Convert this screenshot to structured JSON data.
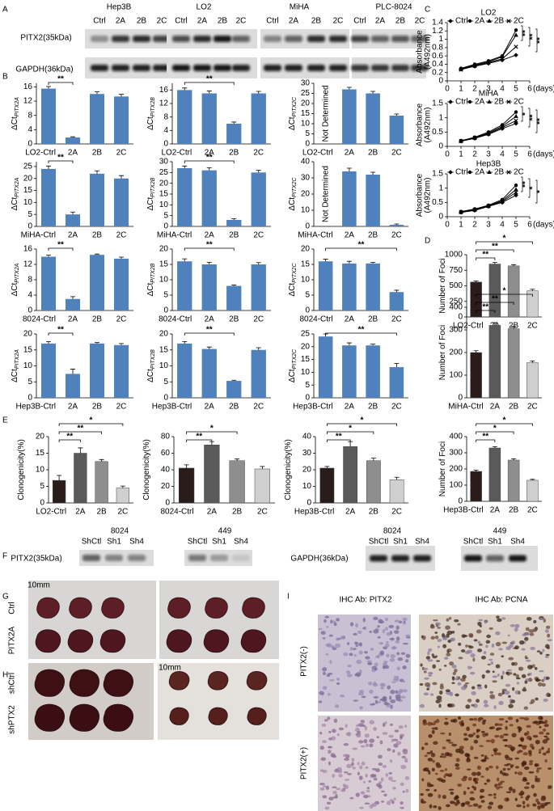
{
  "panel_labels": [
    "A",
    "B",
    "C",
    "D",
    "E",
    "F",
    "G",
    "H",
    "I"
  ],
  "panel_a": {
    "cell_lines": [
      "Hep3B",
      "LO2",
      "MiHA",
      "PLC-8024"
    ],
    "lanes": [
      "Ctrl",
      "2A",
      "2B",
      "2C"
    ],
    "proteins": [
      "PITX2(35kDa)",
      "GAPDH(36kDa)"
    ]
  },
  "panel_f": {
    "groups": [
      "8024",
      "449"
    ],
    "lanes": [
      "ShCtl",
      "Sh1",
      "Sh4"
    ],
    "proteins": [
      "PITX2(35kDa)",
      "GAPDH(36kDa)"
    ]
  },
  "panel_g": {
    "rows": [
      "Ctrl",
      "PITX2A"
    ],
    "scale": "10mm"
  },
  "panel_h": {
    "rows": [
      "shCtrl",
      "shPTX2"
    ],
    "scale": "10mm"
  },
  "panel_i": {
    "columns": [
      "IHC Ab: PITX2",
      "IHC Ab: PCNA"
    ],
    "rows": [
      "PITX2(-)",
      "PITX2(+)"
    ]
  },
  "chart_data": [
    {
      "type": "bar",
      "ylabel": "ΔCt",
      "ylabel_subscript": "PITX2A",
      "categories": [
        "LO2-Ctrl",
        "2A",
        "2B",
        "2C"
      ],
      "values": [
        15.5,
        1.8,
        14,
        13.3
      ],
      "errors": [
        0.6,
        0.2,
        0.6,
        0.6
      ],
      "color": "#4f81bd",
      "ylim": [
        0,
        17
      ],
      "yticks": [
        0,
        4,
        8,
        12,
        16
      ],
      "significance": [
        {
          "label": "**",
          "between": [
            "LO2-Ctrl",
            "2A"
          ]
        }
      ]
    },
    {
      "type": "bar",
      "ylabel": "ΔCt",
      "ylabel_subscript": "PITX2B",
      "categories": [
        "LO2-Ctrl",
        "2A",
        "2B",
        "2C"
      ],
      "values": [
        16,
        15,
        6,
        15
      ],
      "errors": [
        0.6,
        0.7,
        0.5,
        0.6
      ],
      "color": "#4f81bd",
      "ylim": [
        0,
        18
      ],
      "yticks": [
        0,
        4,
        8,
        12,
        16
      ],
      "significance": [
        {
          "label": "**",
          "between": [
            "LO2-Ctrl",
            "2B"
          ]
        }
      ]
    },
    {
      "type": "bar",
      "ylabel": "ΔCt",
      "ylabel_subscript": "PITX2C",
      "categories": [
        "LO2-Ctrl",
        "2A",
        "2B",
        "2C"
      ],
      "values": [
        null,
        27,
        25,
        14
      ],
      "errors": [
        null,
        1,
        1,
        0.8
      ],
      "color": "#4f81bd",
      "ylim": [
        0,
        30
      ],
      "yticks": [
        0,
        5,
        10,
        15,
        20,
        25,
        30
      ],
      "note": "Not Determined"
    },
    {
      "type": "bar",
      "ylabel": "ΔCt",
      "ylabel_subscript": "PITX2A",
      "categories": [
        "MiHA-Ctrl",
        "2A",
        "2B",
        "2C"
      ],
      "values": [
        24,
        5,
        22,
        20
      ],
      "errors": [
        1.2,
        1,
        1.2,
        1.2
      ],
      "color": "#4f81bd",
      "ylim": [
        0,
        27
      ],
      "yticks": [
        0,
        5,
        10,
        15,
        20,
        25
      ],
      "significance": [
        {
          "label": "**",
          "between": [
            "MiHA-Ctrl",
            "2A"
          ]
        }
      ]
    },
    {
      "type": "bar",
      "ylabel": "ΔCt",
      "ylabel_subscript": "PITX2B",
      "categories": [
        "MiHA-Ctrl",
        "2A",
        "2B",
        "2C"
      ],
      "values": [
        27,
        26,
        3,
        25
      ],
      "errors": [
        1,
        1.2,
        0.6,
        1
      ],
      "color": "#4f81bd",
      "ylim": [
        0,
        30
      ],
      "yticks": [
        0,
        5,
        10,
        15,
        20,
        25,
        30
      ],
      "significance": [
        {
          "label": "**",
          "between": [
            "MiHA-Ctrl",
            "2B"
          ]
        }
      ]
    },
    {
      "type": "bar",
      "ylabel": "ΔCt",
      "ylabel_subscript": "PITX2C",
      "categories": [
        "MiHA-Ctrl",
        "2A",
        "2B",
        "2C"
      ],
      "values": [
        null,
        34,
        32,
        1
      ],
      "errors": [
        null,
        2,
        1.5,
        0.5
      ],
      "color": "#4f81bd",
      "ylim": [
        0,
        40
      ],
      "yticks": [
        0,
        10,
        20,
        30,
        40
      ],
      "note": "Not Determined"
    },
    {
      "type": "bar",
      "ylabel": "ΔCt",
      "ylabel_subscript": "PITX2A",
      "categories": [
        "8024-Ctrl",
        "2A",
        "2B",
        "2C"
      ],
      "values": [
        14,
        3,
        14.5,
        13.5
      ],
      "errors": [
        0.4,
        0.6,
        0.2,
        0.4
      ],
      "color": "#4f81bd",
      "ylim": [
        0,
        16
      ],
      "yticks": [
        0,
        4,
        8,
        12,
        16
      ],
      "significance": [
        {
          "label": "**",
          "between": [
            "8024-Ctrl",
            "2A"
          ]
        }
      ]
    },
    {
      "type": "bar",
      "ylabel": "ΔCt",
      "ylabel_subscript": "PITX2B",
      "categories": [
        "8024-Ctrl",
        "2A",
        "2B",
        "2C"
      ],
      "values": [
        16,
        15,
        8,
        15
      ],
      "errors": [
        0.8,
        0.7,
        0.3,
        0.6
      ],
      "color": "#4f81bd",
      "ylim": [
        0,
        20
      ],
      "yticks": [
        0,
        5,
        10,
        15,
        20
      ],
      "significance": [
        {
          "label": "**",
          "between": [
            "8024-Ctrl",
            "2B"
          ]
        }
      ]
    },
    {
      "type": "bar",
      "ylabel": "ΔCt",
      "ylabel_subscript": "PITX2C",
      "categories": [
        "8024-Ctrl",
        "2A",
        "2B",
        "2C"
      ],
      "values": [
        16,
        15.3,
        15.3,
        6
      ],
      "errors": [
        0.7,
        0.7,
        0.4,
        0.6
      ],
      "color": "#4f81bd",
      "ylim": [
        0,
        20
      ],
      "yticks": [
        0,
        5,
        10,
        15,
        20
      ],
      "significance": [
        {
          "label": "**",
          "between": [
            "8024-Ctrl",
            "2C"
          ]
        }
      ]
    },
    {
      "type": "bar",
      "ylabel": "ΔCt",
      "ylabel_subscript": "PITX2A",
      "categories": [
        "Hep3B-Ctrl",
        "2A",
        "2B",
        "2C"
      ],
      "values": [
        17,
        7.5,
        17,
        16.5
      ],
      "errors": [
        0.6,
        1.5,
        0.3,
        0.5
      ],
      "color": "#4f81bd",
      "ylim": [
        0,
        20
      ],
      "yticks": [
        0,
        5,
        10,
        15,
        20
      ],
      "significance": [
        {
          "label": "**",
          "between": [
            "Hep3B-Ctrl",
            "2A"
          ]
        }
      ]
    },
    {
      "type": "bar",
      "ylabel": "ΔCt",
      "ylabel_subscript": "PITX2B",
      "categories": [
        "Hep3B-Ctrl",
        "2A",
        "2B",
        "2C"
      ],
      "values": [
        17,
        15.3,
        5.3,
        15
      ],
      "errors": [
        0.6,
        0.6,
        0.2,
        0.7
      ],
      "color": "#4f81bd",
      "ylim": [
        0,
        20
      ],
      "yticks": [
        0,
        5,
        10,
        15,
        20
      ],
      "significance": [
        {
          "label": "**",
          "between": [
            "Hep3B-Ctrl",
            "2B"
          ]
        }
      ]
    },
    {
      "type": "bar",
      "ylabel": "ΔCt",
      "ylabel_subscript": "PITX2C",
      "categories": [
        "Hep3B-Ctrl",
        "2A",
        "2B",
        "2C"
      ],
      "values": [
        24,
        20.5,
        20.5,
        12
      ],
      "errors": [
        1,
        1,
        0.5,
        1.5
      ],
      "color": "#4f81bd",
      "ylim": [
        0,
        25
      ],
      "yticks": [
        0,
        5,
        10,
        15,
        20,
        25
      ],
      "significance": [
        {
          "label": "**",
          "between": [
            "Hep3B-Ctrl",
            "2C"
          ]
        }
      ]
    },
    {
      "type": "bar",
      "ylabel": "Number of Foci",
      "categories": [
        "LO2-Ctrl",
        "2A",
        "2B",
        "2C"
      ],
      "values": [
        560,
        850,
        820,
        420
      ],
      "errors": [
        20,
        25,
        20,
        25
      ],
      "colors": [
        "#2a1c1a",
        "#5a5a5a",
        "#8e8e8e",
        "#cfcfcf"
      ],
      "ylim": [
        0,
        1000
      ],
      "yticks": [
        0,
        250,
        500,
        750,
        1000
      ],
      "significance": [
        {
          "label": "**",
          "between": [
            "LO2-Ctrl",
            "2A"
          ]
        },
        {
          "label": "**",
          "between": [
            "LO2-Ctrl",
            "2B"
          ]
        },
        {
          "label": "*",
          "between": [
            "LO2-Ctrl",
            "2C"
          ]
        }
      ]
    },
    {
      "type": "bar",
      "ylabel": "Number of Foci",
      "categories": [
        "MiHA-Ctrl",
        "2A",
        "2B",
        "2C"
      ],
      "values": [
        200,
        320,
        305,
        155
      ],
      "errors": [
        8,
        12,
        10,
        8
      ],
      "colors": [
        "#2a1c1a",
        "#5a5a5a",
        "#8e8e8e",
        "#cfcfcf"
      ],
      "ylim": [
        0,
        400
      ],
      "yticks": [
        0,
        100,
        200,
        300,
        400
      ],
      "significance": [
        {
          "label": "**",
          "between": [
            "MiHA-Ctrl",
            "2A"
          ]
        },
        {
          "label": "**",
          "between": [
            "MiHA-Ctrl",
            "2B"
          ]
        },
        {
          "label": "*",
          "between": [
            "MiHA-Ctrl",
            "2C"
          ]
        }
      ]
    },
    {
      "type": "bar",
      "ylabel": "Number of Foci",
      "categories": [
        "Hep3B-Ctrl",
        "2A",
        "2B",
        "2C"
      ],
      "values": [
        185,
        330,
        255,
        130
      ],
      "errors": [
        8,
        8,
        8,
        6
      ],
      "colors": [
        "#2a1c1a",
        "#5a5a5a",
        "#8e8e8e",
        "#cfcfcf"
      ],
      "ylim": [
        0,
        400
      ],
      "yticks": [
        0,
        100,
        200,
        300,
        400
      ],
      "significance": [
        {
          "label": "**",
          "between": [
            "Hep3B-Ctrl",
            "2A"
          ]
        },
        {
          "label": "*",
          "between": [
            "Hep3B-Ctrl",
            "2B"
          ]
        },
        {
          "label": "*",
          "between": [
            "Hep3B-Ctrl",
            "2C"
          ]
        }
      ]
    },
    {
      "type": "bar",
      "ylabel": "Clonogenicity(%)",
      "categories": [
        "LO2-Ctrl",
        "2A",
        "2B",
        "2C"
      ],
      "values": [
        6.8,
        15,
        12.5,
        4.5
      ],
      "errors": [
        1.5,
        1.6,
        0.6,
        0.6
      ],
      "colors": [
        "#2a1c1a",
        "#5a5a5a",
        "#8e8e8e",
        "#cfcfcf"
      ],
      "ylim": [
        0,
        20
      ],
      "yticks": [
        0,
        5,
        10,
        15,
        20
      ],
      "significance": [
        {
          "label": "**",
          "between": [
            "LO2-Ctrl",
            "2A"
          ]
        },
        {
          "label": "**",
          "between": [
            "LO2-Ctrl",
            "2B"
          ]
        },
        {
          "label": "*",
          "between": [
            "LO2-Ctrl",
            "2C"
          ]
        }
      ]
    },
    {
      "type": "bar",
      "ylabel": "Clonogenicity(%)",
      "categories": [
        "8024-Ctrl",
        "2A",
        "2B",
        "2C"
      ],
      "values": [
        42,
        70,
        51,
        41
      ],
      "errors": [
        4,
        4,
        2,
        3
      ],
      "colors": [
        "#2a1c1a",
        "#5a5a5a",
        "#8e8e8e",
        "#cfcfcf"
      ],
      "ylim": [
        0,
        80
      ],
      "yticks": [
        0,
        20,
        40,
        60,
        80
      ],
      "significance": [
        {
          "label": "**",
          "between": [
            "8024-Ctrl",
            "2A"
          ]
        },
        {
          "label": "*",
          "between": [
            "8024-Ctrl",
            "2B"
          ]
        }
      ]
    },
    {
      "type": "bar",
      "ylabel": "Clonogenicity(%)",
      "categories": [
        "Hep3B-Ctrl",
        "2A",
        "2B",
        "2C"
      ],
      "values": [
        21,
        34,
        25.5,
        14
      ],
      "errors": [
        1,
        3,
        1.5,
        1.5
      ],
      "colors": [
        "#2a1c1a",
        "#5a5a5a",
        "#8e8e8e",
        "#cfcfcf"
      ],
      "ylim": [
        0,
        40
      ],
      "yticks": [
        0,
        10,
        20,
        30,
        40
      ],
      "significance": [
        {
          "label": "**",
          "between": [
            "Hep3B-Ctrl",
            "2A"
          ]
        },
        {
          "label": "*",
          "between": [
            "Hep3B-Ctrl",
            "2B"
          ]
        },
        {
          "label": "*",
          "between": [
            "Hep3B-Ctrl",
            "2C"
          ]
        }
      ]
    },
    {
      "type": "line",
      "title": "LO2",
      "ylabel": "Absorbance",
      "ylabel_unit": "(A492nm)",
      "x": [
        1,
        2,
        3,
        4,
        5
      ],
      "xlim": [
        0,
        6
      ],
      "xticks": [
        0,
        1,
        2,
        3,
        4,
        5,
        6
      ],
      "xlabel": "(days)",
      "ylim": [
        0,
        1.4
      ],
      "yticks": [
        0,
        0.2,
        0.4,
        0.6,
        0.8,
        1,
        1.2,
        1.4
      ],
      "series": [
        {
          "name": "Ctrl",
          "color": "#000000",
          "marker": "diamond",
          "values": [
            0.28,
            0.35,
            0.42,
            0.5,
            0.62
          ]
        },
        {
          "name": "2A",
          "color": "#000000",
          "marker": "circle",
          "values": [
            0.3,
            0.4,
            0.48,
            0.6,
            1.22
          ]
        },
        {
          "name": "2B",
          "color": "#000000",
          "marker": "triangle",
          "values": [
            0.29,
            0.38,
            0.46,
            0.58,
            1.1
          ]
        },
        {
          "name": "2C",
          "color": "#000000",
          "marker": "cross",
          "values": [
            0.27,
            0.36,
            0.44,
            0.53,
            0.82
          ]
        }
      ],
      "significance": [
        "**",
        "**",
        "**"
      ]
    },
    {
      "type": "line",
      "title": "MiHA",
      "ylabel": "Absorbance",
      "ylabel_unit": "(A492nm)",
      "x": [
        1,
        2,
        3,
        4,
        5
      ],
      "xlim": [
        0,
        6
      ],
      "xticks": [
        0,
        1,
        2,
        3,
        4,
        5,
        6
      ],
      "xlabel": "(days)",
      "ylim": [
        0,
        1.5
      ],
      "yticks": [
        0,
        0.5,
        1,
        1.5
      ],
      "series": [
        {
          "name": "Ctrl",
          "color": "#000000",
          "marker": "diamond",
          "values": [
            0.18,
            0.28,
            0.42,
            0.62,
            0.8
          ]
        },
        {
          "name": "2A",
          "color": "#000000",
          "marker": "circle",
          "values": [
            0.2,
            0.32,
            0.5,
            0.75,
            1.2
          ]
        },
        {
          "name": "2B",
          "color": "#000000",
          "marker": "triangle",
          "values": [
            0.19,
            0.3,
            0.47,
            0.7,
            1.05
          ]
        },
        {
          "name": "2C",
          "color": "#000000",
          "marker": "cross",
          "values": [
            0.18,
            0.29,
            0.44,
            0.66,
            0.9
          ]
        }
      ],
      "significance": [
        "*",
        "**",
        "**"
      ]
    },
    {
      "type": "line",
      "title": "Hep3B",
      "ylabel": "Absorbance",
      "ylabel_unit": "(A492nm)",
      "x": [
        1,
        2,
        3,
        4,
        5
      ],
      "xlim": [
        0,
        6
      ],
      "xticks": [
        0,
        1,
        2,
        3,
        4,
        5,
        6
      ],
      "xlabel": "(days)",
      "ylim": [
        0,
        1.5
      ],
      "yticks": [
        0,
        0.5,
        1,
        1.5
      ],
      "series": [
        {
          "name": "Ctrl",
          "color": "#000000",
          "marker": "diamond",
          "values": [
            0.15,
            0.22,
            0.36,
            0.5,
            0.75
          ]
        },
        {
          "name": "2A",
          "color": "#000000",
          "marker": "circle",
          "values": [
            0.18,
            0.27,
            0.4,
            0.6,
            1.1
          ]
        },
        {
          "name": "2B",
          "color": "#000000",
          "marker": "triangle",
          "values": [
            0.17,
            0.25,
            0.38,
            0.56,
            0.95
          ]
        },
        {
          "name": "2C",
          "color": "#000000",
          "marker": "cross",
          "values": [
            0.16,
            0.24,
            0.37,
            0.53,
            0.85
          ]
        }
      ],
      "significance": [
        "**",
        "*",
        "*"
      ]
    }
  ]
}
